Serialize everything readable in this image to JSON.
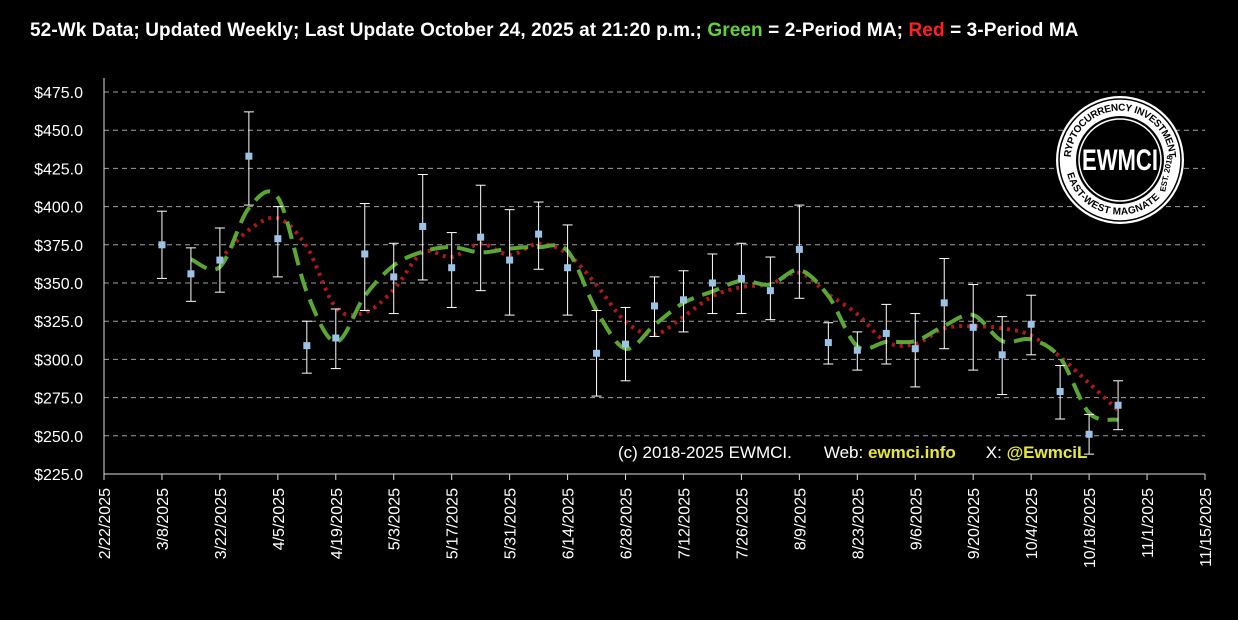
{
  "title": {
    "prefix": "52-Wk Data; Updated Weekly; Last Update October 24, 2025 at 21:20 p.m.; ",
    "green_word": "Green",
    "green_rest": " = 2-Period MA; ",
    "red_word": "Red",
    "red_rest": " = 3-Period MA"
  },
  "colors": {
    "background": "#000000",
    "grid": "#a0a0a0",
    "price_marker": "#9cc3e6",
    "error_bar": "#ffffff",
    "ma2": "#5aa832",
    "ma3": "#b01818",
    "title_green": "#5fd43a",
    "title_red": "#ff2020",
    "footer_highlight": "#e8e83c"
  },
  "logo": {
    "main": "EWMCI",
    "ring_top": "CRYPTOCURRENCY INVESTMENTS",
    "ring_bottom": "EAST-WEST MAGNATE",
    "est": "EST. 2018"
  },
  "footer": {
    "copyright": "(c) 2018-2025 EWMCI.",
    "web_label": "Web: ",
    "web_value": "ewmci.info",
    "x_label": "X: ",
    "x_value": "@EwmciL"
  },
  "chart_data": {
    "type": "scatter",
    "x_axis": {
      "min": "2/22/2025",
      "max": "11/15/2025",
      "tick_labels": [
        "2/22/2025",
        "3/8/2025",
        "3/22/2025",
        "4/5/2025",
        "4/19/2025",
        "5/3/2025",
        "5/17/2025",
        "5/31/2025",
        "6/14/2025",
        "6/28/2025",
        "7/12/2025",
        "7/26/2025",
        "8/9/2025",
        "8/23/2025",
        "9/6/2025",
        "9/20/2025",
        "10/4/2025",
        "10/18/2025",
        "11/1/2025",
        "11/15/2025"
      ]
    },
    "y_axis": {
      "min": 225,
      "max": 475,
      "step": 25,
      "tick_labels": [
        "$225.0",
        "$250.0",
        "$275.0",
        "$300.0",
        "$325.0",
        "$350.0",
        "$375.0",
        "$400.0",
        "$425.0",
        "$450.0",
        "$475.0"
      ]
    },
    "grid": true,
    "series": [
      {
        "points": [
          {
            "x": "3/8/2025",
            "y": 375,
            "high": 397,
            "low": 353
          },
          {
            "x": "3/15/2025",
            "y": 356,
            "high": 373,
            "low": 338
          },
          {
            "x": "3/22/2025",
            "y": 365,
            "high": 386,
            "low": 344
          },
          {
            "x": "3/29/2025",
            "y": 433,
            "high": 462,
            "low": 401
          },
          {
            "x": "4/5/2025",
            "y": 379,
            "high": 400,
            "low": 354
          },
          {
            "x": "4/12/2025",
            "y": 309,
            "high": 325,
            "low": 291
          },
          {
            "x": "4/19/2025",
            "y": 314,
            "high": 333,
            "low": 294
          },
          {
            "x": "4/26/2025",
            "y": 369,
            "high": 402,
            "low": 332
          },
          {
            "x": "5/3/2025",
            "y": 354,
            "high": 376,
            "low": 330
          },
          {
            "x": "5/10/2025",
            "y": 387,
            "high": 421,
            "low": 352
          },
          {
            "x": "5/17/2025",
            "y": 360,
            "high": 383,
            "low": 334
          },
          {
            "x": "5/24/2025",
            "y": 380,
            "high": 414,
            "low": 345
          },
          {
            "x": "5/31/2025",
            "y": 365,
            "high": 398,
            "low": 329
          },
          {
            "x": "6/7/2025",
            "y": 382,
            "high": 403,
            "low": 359
          },
          {
            "x": "6/14/2025",
            "y": 360,
            "high": 388,
            "low": 329
          },
          {
            "x": "6/21/2025",
            "y": 304,
            "high": 332,
            "low": 276
          },
          {
            "x": "6/28/2025",
            "y": 310,
            "high": 334,
            "low": 286
          },
          {
            "x": "7/5/2025",
            "y": 335,
            "high": 354,
            "low": 315
          },
          {
            "x": "7/12/2025",
            "y": 339,
            "high": 358,
            "low": 318
          },
          {
            "x": "7/19/2025",
            "y": 350,
            "high": 369,
            "low": 330
          },
          {
            "x": "7/26/2025",
            "y": 353,
            "high": 376,
            "low": 330
          },
          {
            "x": "8/2/2025",
            "y": 345,
            "high": 367,
            "low": 326
          },
          {
            "x": "8/9/2025",
            "y": 372,
            "high": 401,
            "low": 340
          },
          {
            "x": "8/16/2025",
            "y": 311,
            "high": 324,
            "low": 297
          },
          {
            "x": "8/23/2025",
            "y": 306,
            "high": 318,
            "low": 293
          },
          {
            "x": "8/30/2025",
            "y": 317,
            "high": 336,
            "low": 297
          },
          {
            "x": "9/6/2025",
            "y": 307,
            "high": 330,
            "low": 282
          },
          {
            "x": "9/13/2025",
            "y": 337,
            "high": 366,
            "low": 307
          },
          {
            "x": "9/20/2025",
            "y": 321,
            "high": 349,
            "low": 293
          },
          {
            "x": "9/27/2025",
            "y": 303,
            "high": 328,
            "low": 277
          },
          {
            "x": "10/4/2025",
            "y": 323,
            "high": 342,
            "low": 303
          },
          {
            "x": "10/11/2025",
            "y": 279,
            "high": 296,
            "low": 261
          },
          {
            "x": "10/18/2025",
            "y": 251,
            "high": 264,
            "low": 238
          },
          {
            "x": "10/25/2025",
            "y": 270,
            "high": 286,
            "low": 254
          }
        ]
      }
    ],
    "moving_averages": [
      {
        "name": "2-Period MA",
        "period": 2,
        "style": "dashed"
      },
      {
        "name": "3-Period MA",
        "period": 3,
        "style": "dotted"
      }
    ]
  }
}
